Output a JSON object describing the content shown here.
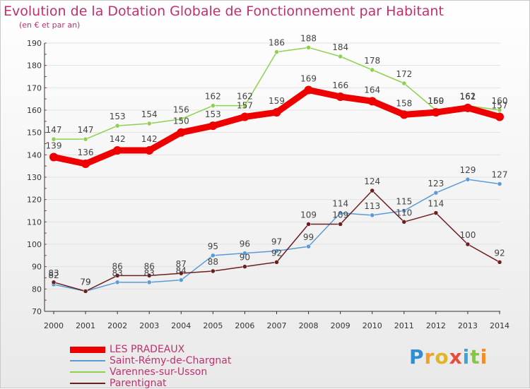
{
  "header": {
    "title": "Evolution de la Dotation Globale de Fonctionnement par Habitant",
    "subtitle": "(en € et par an)"
  },
  "logo": {
    "text": "Proxiti"
  },
  "colors": {
    "text": "#c0306f",
    "axis": "#333333",
    "grid": "#e2e2e2"
  },
  "chart_data": {
    "type": "line",
    "title": "Evolution de la Dotation Globale de Fonctionnement par Habitant",
    "subtitle": "(en € et par an)",
    "xlabel": "",
    "ylabel": "",
    "x": [
      "2000",
      "2001",
      "2002",
      "2003",
      "2004",
      "2005",
      "2006",
      "2007",
      "2008",
      "2009",
      "2010",
      "2011",
      "2012",
      "2013",
      "2014"
    ],
    "ylim": [
      70,
      190
    ],
    "yticks": [
      70,
      80,
      90,
      100,
      110,
      120,
      130,
      140,
      150,
      160,
      170,
      180,
      190
    ],
    "grid": true,
    "legend_position": "bottom-left",
    "series": [
      {
        "name": "LES PRADEAUX",
        "color": "#ee0000",
        "values": [
          139,
          136,
          142,
          142,
          150,
          153,
          157,
          159,
          169,
          166,
          164,
          158,
          159,
          161,
          157
        ]
      },
      {
        "name": "Saint-Rémy-de-Chargnat",
        "color": "#5b9bd5",
        "values": [
          82,
          79,
          83,
          83,
          84,
          95,
          96,
          97,
          99,
          114,
          113,
          115,
          123,
          129,
          127
        ]
      },
      {
        "name": "Varennes-sur-Usson",
        "color": "#8fd14f",
        "values": [
          147,
          147,
          153,
          154,
          156,
          162,
          162,
          186,
          188,
          184,
          178,
          172,
          160,
          162,
          160
        ]
      },
      {
        "name": "Parentignat",
        "color": "#6b1f1f",
        "values": [
          83,
          79,
          86,
          86,
          87,
          88,
          90,
          92,
          109,
          109,
          124,
          110,
          114,
          100,
          92
        ]
      }
    ],
    "data_labels": {
      "LES PRADEAUX": [
        "139",
        "136",
        "142",
        "142",
        "150",
        "153",
        "157",
        "159",
        "169",
        "166",
        "164",
        "158",
        "159",
        "161",
        "157"
      ],
      "Saint-Rémy-de-Chargnat": [
        "82",
        "79",
        "83",
        "83",
        "84",
        "95",
        "96",
        "97",
        "99",
        "114",
        "113",
        "115",
        "123",
        "129",
        "127"
      ],
      "Varennes-sur-Usson": [
        "147",
        "147",
        "153",
        "154",
        "156",
        "162",
        "162",
        "186",
        "188",
        "184",
        "178",
        "172",
        "160",
        "162",
        "160"
      ],
      "Parentignat": [
        "83",
        "79",
        "86",
        "86",
        "87",
        "88",
        "90",
        "92",
        "109",
        "109",
        "124",
        "110",
        "114",
        "100",
        "92"
      ]
    }
  }
}
